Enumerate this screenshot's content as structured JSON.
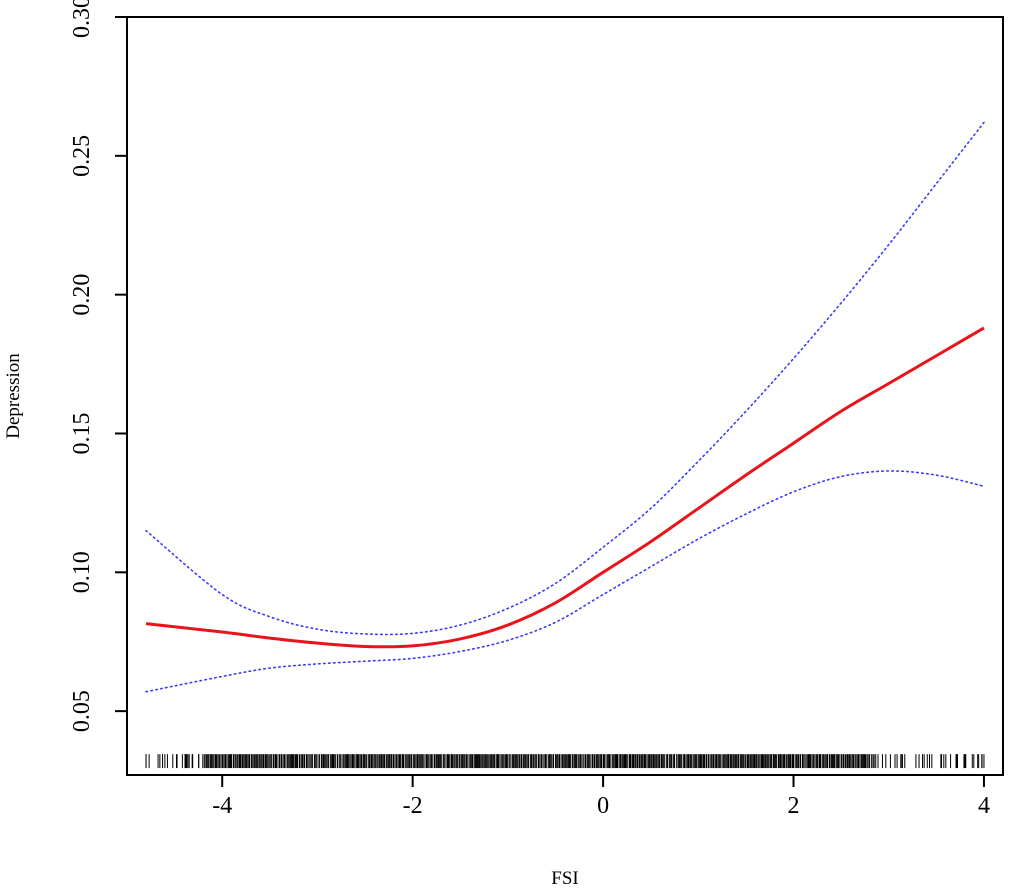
{
  "chart_data": {
    "type": "line",
    "title": "",
    "xlabel": "FSI",
    "ylabel": "Depression",
    "xlim": [
      -5.0,
      4.2
    ],
    "ylim": [
      0.027,
      0.3
    ],
    "x_ticks": [
      -4,
      -2,
      0,
      2,
      4
    ],
    "x_tick_labels": [
      "-4",
      "-2",
      "0",
      "2",
      "4"
    ],
    "y_ticks": [
      0.05,
      0.1,
      0.15,
      0.2,
      0.25,
      0.3
    ],
    "y_tick_labels": [
      "0.05",
      "0.10",
      "0.15",
      "0.20",
      "0.25",
      "0.30"
    ],
    "grid": false,
    "legend": "none",
    "series": [
      {
        "style": "solid",
        "color": "#e8141c",
        "role": "estimate",
        "x": [
          -4.8,
          -4.0,
          -3.5,
          -3.0,
          -2.5,
          -2.0,
          -1.5,
          -1.0,
          -0.5,
          0.0,
          0.5,
          1.0,
          1.5,
          2.0,
          2.5,
          3.0,
          3.5,
          4.0
        ],
        "y": [
          0.0815,
          0.0785,
          0.0763,
          0.0745,
          0.0733,
          0.0735,
          0.076,
          0.081,
          0.089,
          0.1,
          0.111,
          0.123,
          0.135,
          0.1465,
          0.158,
          0.168,
          0.178,
          0.188
        ]
      },
      {
        "style": "dotted",
        "color": "#3a3aff",
        "role": "upper",
        "x": [
          -4.8,
          -4.0,
          -3.5,
          -3.0,
          -2.5,
          -2.0,
          -1.5,
          -1.0,
          -0.5,
          0.0,
          0.5,
          1.0,
          1.5,
          2.0,
          2.5,
          3.0,
          3.5,
          4.0
        ],
        "y": [
          0.115,
          0.092,
          0.084,
          0.0795,
          0.0778,
          0.078,
          0.081,
          0.087,
          0.096,
          0.109,
          0.123,
          0.14,
          0.158,
          0.177,
          0.197,
          0.218,
          0.24,
          0.262
        ]
      },
      {
        "style": "dotted",
        "color": "#3a3aff",
        "role": "lower",
        "x": [
          -4.8,
          -4.0,
          -3.5,
          -3.0,
          -2.5,
          -2.0,
          -1.5,
          -1.0,
          -0.5,
          0.0,
          0.5,
          1.0,
          1.5,
          2.0,
          2.5,
          3.0,
          3.5,
          4.0
        ],
        "y": [
          0.057,
          0.0625,
          0.0655,
          0.067,
          0.068,
          0.069,
          0.0715,
          0.0755,
          0.082,
          0.092,
          0.102,
          0.112,
          0.121,
          0.129,
          0.1345,
          0.1365,
          0.135,
          0.131
        ]
      }
    ],
    "rug": {
      "y_bottom": 0.0295,
      "y_top": 0.0345,
      "x_min": -4.8,
      "x_max": 4.0,
      "sparse_left_below": -4.2,
      "sparse_right_above": 2.8
    }
  }
}
